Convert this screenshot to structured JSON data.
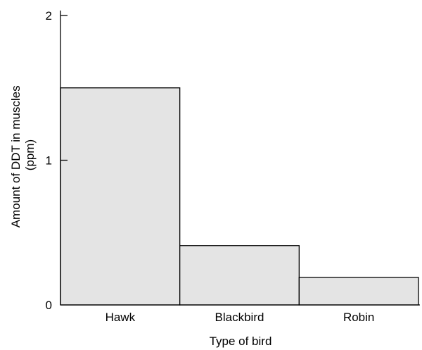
{
  "chart_data": {
    "type": "bar",
    "title": "",
    "categories": [
      "Hawk",
      "Blackbird",
      "Robin"
    ],
    "values": [
      1.5,
      0.41,
      0.19
    ],
    "ylim": [
      0,
      2
    ],
    "yticks": [
      "0",
      "1",
      "2"
    ],
    "xlabel": "Type of bird",
    "ylabel_line1": "Amount of DDT in muscles",
    "ylabel_line2": "(ppm)",
    "bar_color": "#e4e4e4",
    "grid": false,
    "legend": "none"
  }
}
